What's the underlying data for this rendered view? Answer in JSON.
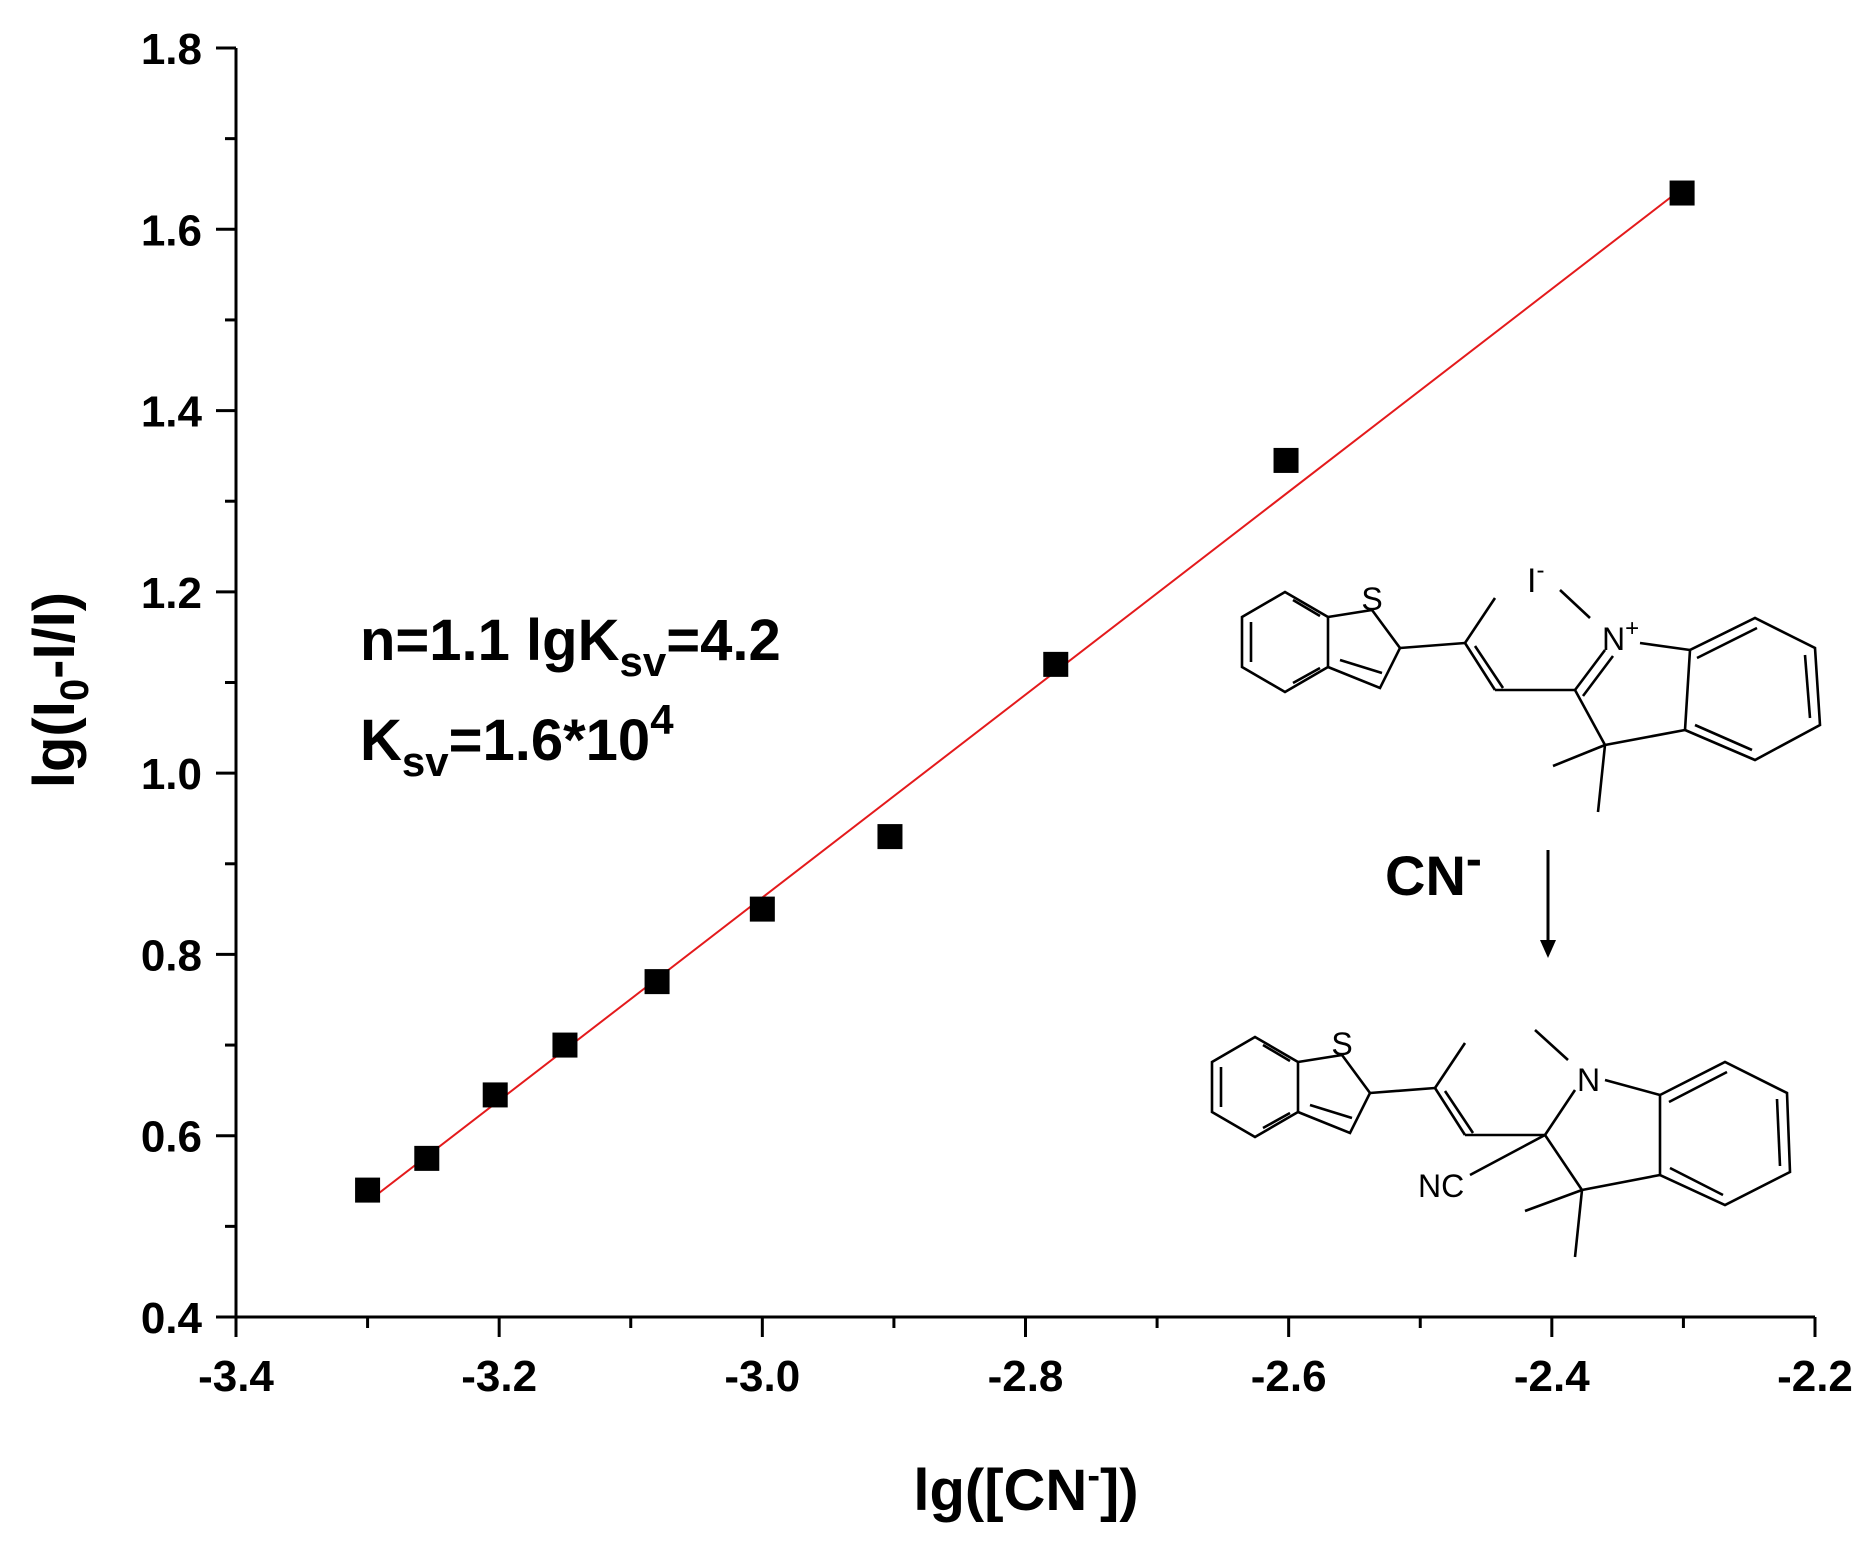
{
  "chart_data": {
    "type": "scatter",
    "xlabel": {
      "prefix": "lg([CN",
      "sup": "-",
      "suffix": "])"
    },
    "ylabel": {
      "prefix": "lg(I",
      "sub": "0",
      "suffix": "-I/I)"
    },
    "xlim": [
      -3.4,
      -2.2
    ],
    "ylim": [
      0.4,
      1.8
    ],
    "x_ticks": [
      -3.4,
      -3.2,
      -3.0,
      -2.8,
      -2.6,
      -2.4,
      -2.2
    ],
    "x_tick_labels": [
      "-3.4",
      "-3.2",
      "-3.0",
      "-2.8",
      "-2.6",
      "-2.4",
      "-2.2"
    ],
    "y_ticks": [
      0.4,
      0.6,
      0.8,
      1.0,
      1.2,
      1.4,
      1.6,
      1.8
    ],
    "y_tick_labels": [
      "0.4",
      "0.6",
      "0.8",
      "1.0",
      "1.2",
      "1.4",
      "1.6",
      "1.8"
    ],
    "grid": false,
    "points": {
      "marker": "square",
      "color": "#000000",
      "x": [
        -3.3,
        -3.255,
        -3.203,
        -3.15,
        -3.08,
        -3.0,
        -2.903,
        -2.777,
        -2.602,
        -2.301
      ],
      "y": [
        0.54,
        0.575,
        0.645,
        0.7,
        0.77,
        0.85,
        0.93,
        1.12,
        1.345,
        1.64
      ]
    },
    "fit_line": {
      "color": "#e41a1c",
      "x": [
        -3.3,
        -2.301
      ],
      "y": [
        0.527,
        1.645
      ]
    },
    "annotations": {
      "line1": {
        "a": "n=1.1 lgK",
        "sub": "sv",
        "b": "=4.2"
      },
      "line2": {
        "a": "K",
        "sub": "sv",
        "b": "=1.6*10",
        "sup": "4"
      }
    }
  },
  "scheme": {
    "reagent": "CN",
    "reagent_charge": "-",
    "top_molecule": {
      "sulfur": "S",
      "counterion": "I",
      "counterion_charge": "-",
      "nitrogen": "N",
      "nitrogen_charge": "+"
    },
    "bottom_molecule": {
      "sulfur": "S",
      "nitrogen": "N",
      "nitrile": "NC"
    }
  }
}
